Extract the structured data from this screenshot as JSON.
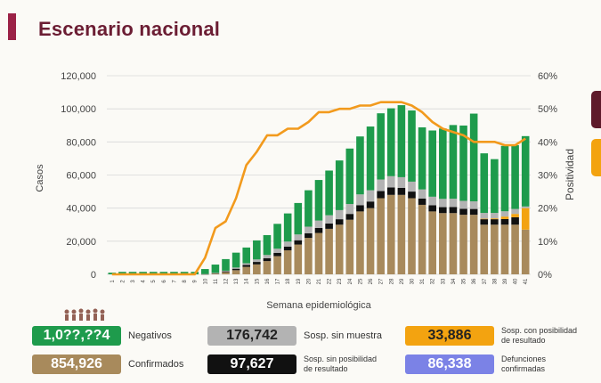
{
  "page": {
    "title": "Escenario nacional"
  },
  "colors": {
    "accent": "#9b2247",
    "green": "#1e9b4c",
    "grey": "#b3b3b3",
    "black": "#111111",
    "tan": "#a88a5c",
    "orange": "#f29a1d",
    "yellow": "#f3a310",
    "purple": "#7b82e6"
  },
  "chart_data": {
    "type": "bar",
    "xlabel": "Semana epidemiológica",
    "ylabel": "Casos",
    "y2label": "Positividad",
    "ylim": [
      0,
      120000
    ],
    "y2lim": [
      0,
      60
    ],
    "yticks": [
      "0",
      "20,000",
      "40,000",
      "60,000",
      "80,000",
      "100,000",
      "120,000"
    ],
    "y2ticks": [
      "0%",
      "10%",
      "20%",
      "30%",
      "40%",
      "50%",
      "60%"
    ],
    "categories": [
      "1",
      "2",
      "3",
      "4",
      "5",
      "6",
      "7",
      "8",
      "9",
      "10",
      "11",
      "12",
      "13",
      "14",
      "15",
      "16",
      "17",
      "18",
      "19",
      "20",
      "21",
      "22",
      "23",
      "24",
      "25",
      "26",
      "27",
      "28",
      "29",
      "30",
      "31",
      "32",
      "33",
      "34",
      "35",
      "36",
      "37",
      "38",
      "39",
      "40",
      "41"
    ],
    "series": [
      {
        "stack": "Confirmados",
        "values": [
          0,
          0,
          0,
          0,
          0,
          0,
          0,
          0,
          0,
          100,
          500,
          1300,
          2500,
          4500,
          6000,
          8000,
          11000,
          14500,
          18000,
          22000,
          25000,
          27500,
          30000,
          33000,
          38000,
          40000,
          46000,
          48000,
          48000,
          46000,
          42000,
          38000,
          37000,
          37000,
          36000,
          36000,
          30000,
          30000,
          30000,
          30000,
          27000
        ]
      },
      {
        "stack": "Sosp. sin posibilidad de resultado",
        "values": [
          0,
          0,
          0,
          0,
          0,
          0,
          0,
          0,
          0,
          50,
          200,
          500,
          900,
          1200,
          1500,
          1700,
          2000,
          2300,
          2600,
          2800,
          3000,
          3200,
          3300,
          3500,
          3800,
          4000,
          4300,
          4500,
          4200,
          4000,
          3800,
          3700,
          3600,
          3700,
          3600,
          3500,
          3300,
          3300,
          3400,
          4500,
          0
        ]
      },
      {
        "stack": "Sosp. con posibilidad de resultado",
        "values": [
          0,
          0,
          0,
          0,
          0,
          0,
          0,
          0,
          0,
          0,
          0,
          0,
          0,
          0,
          0,
          0,
          0,
          0,
          0,
          0,
          0,
          0,
          0,
          0,
          0,
          0,
          0,
          0,
          0,
          0,
          0,
          0,
          0,
          0,
          0,
          0,
          300,
          500,
          1500,
          2000,
          13000
        ]
      },
      {
        "stack": "Sosp. sin muestra",
        "values": [
          0,
          0,
          0,
          0,
          0,
          0,
          0,
          0,
          0,
          50,
          200,
          400,
          700,
          1000,
          1500,
          2000,
          2500,
          3000,
          3500,
          4000,
          4500,
          5000,
          5500,
          6000,
          6500,
          6800,
          7000,
          6800,
          6500,
          6000,
          5500,
          5200,
          5000,
          5000,
          4800,
          4600,
          3500,
          3300,
          3200,
          3000,
          1000
        ]
      },
      {
        "stack": "Negativos",
        "values": [
          1000,
          1500,
          1500,
          1500,
          1500,
          1500,
          1500,
          1500,
          1500,
          3000,
          5000,
          7000,
          9000,
          9500,
          11500,
          12000,
          15000,
          17000,
          19000,
          22000,
          24500,
          27000,
          30000,
          33500,
          35000,
          38500,
          40000,
          41000,
          43500,
          43000,
          37500,
          40000,
          42500,
          44500,
          45500,
          53000,
          36000,
          32500,
          39500,
          38500,
          42500
        ]
      },
      {
        "line": "Positividad",
        "values": [
          0,
          0,
          0,
          0,
          0,
          0,
          0,
          0,
          0,
          5,
          14,
          16,
          23,
          33,
          37,
          42,
          42,
          44,
          44,
          46,
          49,
          49,
          50,
          50,
          51,
          51,
          52,
          52,
          52,
          51,
          49,
          46,
          44,
          43,
          42,
          40,
          40,
          40,
          39,
          39,
          41
        ]
      }
    ]
  },
  "stats": [
    {
      "value": "1,0??,??4",
      "label": "Negativos"
    },
    {
      "value": "176,742",
      "label": "Sosp. sin muestra"
    },
    {
      "value": "33,886",
      "label_line1": "Sosp. con posibilidad",
      "label_line2": "de resultado"
    },
    {
      "value": "854,926",
      "label": "Confirmados"
    },
    {
      "value": "97,627",
      "label_line1": "Sosp. sin posibilidad",
      "label_line2": "de resultado"
    },
    {
      "value": "86,338",
      "label_line1": "Defunciones",
      "label_line2": "confirmadas"
    }
  ]
}
